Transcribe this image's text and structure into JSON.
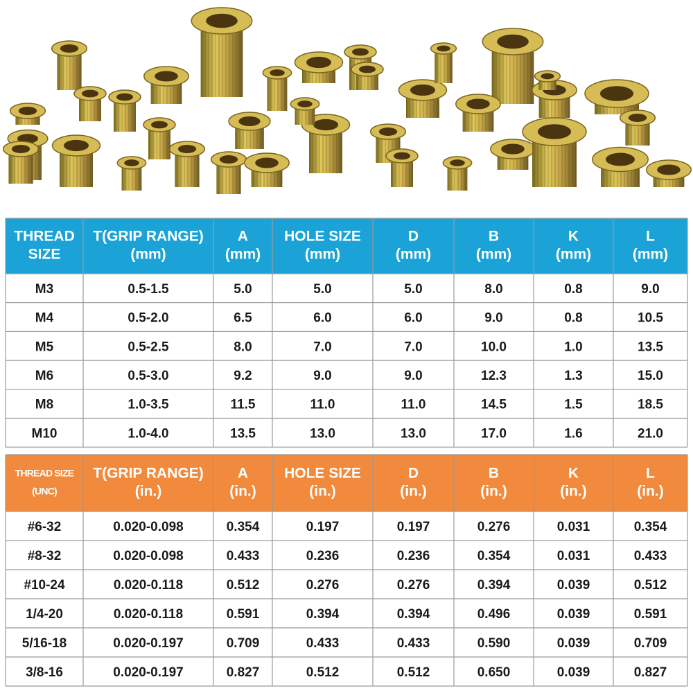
{
  "tables": [
    {
      "header": [
        [
          "THREAD",
          "SIZE"
        ],
        [
          "T(GRIP RANGE)",
          "(mm)"
        ],
        [
          "A",
          "(mm)"
        ],
        [
          "HOLE SIZE",
          "(mm)"
        ],
        [
          "D",
          "(mm)"
        ],
        [
          "B",
          "(mm)"
        ],
        [
          "K",
          "(mm)"
        ],
        [
          "L",
          "(mm)"
        ]
      ],
      "rows": [
        [
          "M3",
          "0.5-1.5",
          "5.0",
          "5.0",
          "5.0",
          "8.0",
          "0.8",
          "9.0"
        ],
        [
          "M4",
          "0.5-2.0",
          "6.5",
          "6.0",
          "6.0",
          "9.0",
          "0.8",
          "10.5"
        ],
        [
          "M5",
          "0.5-2.5",
          "8.0",
          "7.0",
          "7.0",
          "10.0",
          "1.0",
          "13.5"
        ],
        [
          "M6",
          "0.5-3.0",
          "9.2",
          "9.0",
          "9.0",
          "12.3",
          "1.3",
          "15.0"
        ],
        [
          "M8",
          "1.0-3.5",
          "11.5",
          "11.0",
          "11.0",
          "14.5",
          "1.5",
          "18.5"
        ],
        [
          "M10",
          "1.0-4.0",
          "13.5",
          "13.0",
          "13.0",
          "17.0",
          "1.6",
          "21.0"
        ]
      ]
    },
    {
      "header": [
        [
          "THREAD SIZE",
          "(UNC)"
        ],
        [
          "T(GRIP RANGE)",
          "(in.)"
        ],
        [
          "A",
          "(in.)"
        ],
        [
          "HOLE SIZE",
          "(in.)"
        ],
        [
          "D",
          "(in.)"
        ],
        [
          "B",
          "(in.)"
        ],
        [
          "K",
          "(in.)"
        ],
        [
          "L",
          "(in.)"
        ]
      ],
      "rows": [
        [
          "#6-32",
          "0.020-0.098",
          "0.354",
          "0.197",
          "0.197",
          "0.276",
          "0.031",
          "0.354"
        ],
        [
          "#8-32",
          "0.020-0.098",
          "0.433",
          "0.236",
          "0.236",
          "0.354",
          "0.031",
          "0.433"
        ],
        [
          "#10-24",
          "0.020-0.118",
          "0.512",
          "0.276",
          "0.276",
          "0.394",
          "0.039",
          "0.512"
        ],
        [
          "1/4-20",
          "0.020-0.118",
          "0.591",
          "0.394",
          "0.394",
          "0.496",
          "0.039",
          "0.591"
        ],
        [
          "5/16-18",
          "0.020-0.197",
          "0.709",
          "0.433",
          "0.433",
          "0.590",
          "0.039",
          "0.709"
        ],
        [
          "3/8-16",
          "0.020-0.197",
          "0.827",
          "0.512",
          "0.512",
          "0.650",
          "0.039",
          "0.827"
        ]
      ]
    }
  ]
}
